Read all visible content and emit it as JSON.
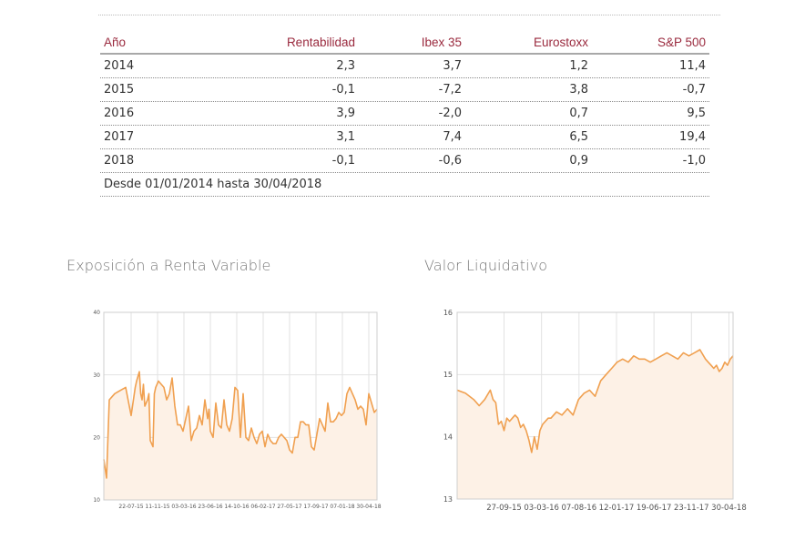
{
  "table": {
    "headers": [
      "Año",
      "Rentabilidad",
      "Ibex 35",
      "Eurostoxx",
      "S&P 500"
    ],
    "rows": [
      [
        "2014",
        "2,3",
        "3,7",
        "1,2",
        "11,4"
      ],
      [
        "2015",
        "-0,1",
        "-7,2",
        "3,8",
        "-0,7"
      ],
      [
        "2016",
        "3,9",
        "-2,0",
        "0,7",
        "9,5"
      ],
      [
        "2017",
        "3,1",
        "7,4",
        "6,5",
        "19,4"
      ],
      [
        "2018",
        "-0,1",
        "-0,6",
        "0,9",
        "-1,0"
      ]
    ],
    "note": "Desde 01/01/2014 hasta 30/04/2018"
  },
  "chart_data": [
    {
      "type": "area",
      "title": "Exposición a Renta Variable",
      "xlabel": "",
      "ylabel": "",
      "ylim": [
        10,
        40
      ],
      "yticks": [
        "40",
        "30",
        "20",
        "10"
      ],
      "xticks": [
        "22-07-15",
        "11-11-15",
        "03-03-16",
        "23-06-16",
        "14-10-16",
        "06-02-17",
        "27-05-17",
        "17-09-17",
        "07-01-18",
        "30-04-18"
      ],
      "grid": true,
      "color": "#f0a050",
      "fill": "#fdf1e6",
      "x": [
        0,
        0.01,
        0.02,
        0.03,
        0.04,
        0.06,
        0.08,
        0.1,
        0.11,
        0.115,
        0.12,
        0.13,
        0.135,
        0.14,
        0.145,
        0.15,
        0.16,
        0.165,
        0.17,
        0.175,
        0.18,
        0.185,
        0.19,
        0.2,
        0.22,
        0.23,
        0.24,
        0.25,
        0.26,
        0.27,
        0.28,
        0.29,
        0.3,
        0.31,
        0.32,
        0.33,
        0.34,
        0.35,
        0.36,
        0.37,
        0.38,
        0.385,
        0.39,
        0.4,
        0.41,
        0.42,
        0.43,
        0.44,
        0.45,
        0.46,
        0.47,
        0.48,
        0.49,
        0.5,
        0.51,
        0.52,
        0.53,
        0.54,
        0.55,
        0.56,
        0.57,
        0.58,
        0.59,
        0.6,
        0.61,
        0.62,
        0.63,
        0.64,
        0.65,
        0.66,
        0.67,
        0.68,
        0.69,
        0.7,
        0.71,
        0.72,
        0.73,
        0.74,
        0.75,
        0.76,
        0.77,
        0.78,
        0.79,
        0.8,
        0.81,
        0.82,
        0.83,
        0.84,
        0.85,
        0.86,
        0.87,
        0.88,
        0.89,
        0.9,
        0.91,
        0.92,
        0.93,
        0.94,
        0.95,
        0.96,
        0.97,
        0.98,
        0.99,
        1.0
      ],
      "values": [
        16.5,
        13.5,
        26,
        26.5,
        27,
        27.5,
        28,
        23.5,
        26.5,
        28,
        29,
        30.5,
        27,
        26,
        28.5,
        25,
        26,
        27,
        19.5,
        19,
        18.5,
        27,
        28,
        29,
        28,
        26,
        27,
        29.5,
        25,
        22,
        22,
        21,
        23,
        25,
        19.5,
        21,
        21.5,
        23.5,
        22,
        26,
        23,
        24.5,
        21,
        20,
        25.5,
        22,
        21.5,
        26,
        22,
        21,
        23,
        28,
        27.5,
        20,
        27,
        20,
        19.5,
        21.5,
        20,
        19,
        20.5,
        21,
        18.5,
        20.5,
        19.5,
        19,
        19,
        20,
        20.5,
        20,
        19.5,
        18,
        17.5,
        20,
        20,
        22.5,
        22.5,
        22,
        22,
        18.5,
        18,
        20.5,
        23,
        22,
        21,
        25.5,
        22.5,
        22.5,
        23,
        24,
        23.5,
        24,
        27,
        28,
        27,
        26,
        24.5,
        25,
        24.5,
        22,
        27,
        25.5,
        24,
        24.5
      ]
    },
    {
      "type": "area",
      "title": "Valor Liquidativo",
      "xlabel": "",
      "ylabel": "",
      "ylim": [
        13,
        16
      ],
      "yticks": [
        "16",
        "15",
        "14",
        "13"
      ],
      "xticks": [
        "27-09-15",
        "03-03-16",
        "07-08-16",
        "12-01-17",
        "19-06-17",
        "23-11-17",
        "30-04-18"
      ],
      "grid": true,
      "color": "#f0a050",
      "fill": "#fdf1e6",
      "x": [
        0,
        0.03,
        0.06,
        0.08,
        0.1,
        0.12,
        0.13,
        0.14,
        0.15,
        0.16,
        0.17,
        0.18,
        0.19,
        0.2,
        0.21,
        0.22,
        0.23,
        0.24,
        0.25,
        0.26,
        0.27,
        0.28,
        0.29,
        0.3,
        0.31,
        0.32,
        0.33,
        0.34,
        0.36,
        0.38,
        0.4,
        0.42,
        0.44,
        0.46,
        0.48,
        0.5,
        0.52,
        0.54,
        0.56,
        0.58,
        0.6,
        0.62,
        0.64,
        0.66,
        0.68,
        0.7,
        0.72,
        0.74,
        0.76,
        0.78,
        0.8,
        0.82,
        0.84,
        0.86,
        0.88,
        0.9,
        0.91,
        0.92,
        0.93,
        0.94,
        0.95,
        0.96,
        0.97,
        0.98,
        0.99,
        1.0
      ],
      "values": [
        14.75,
        14.7,
        14.6,
        14.5,
        14.6,
        14.75,
        14.6,
        14.55,
        14.2,
        14.25,
        14.1,
        14.3,
        14.25,
        14.3,
        14.35,
        14.3,
        14.15,
        14.2,
        14.1,
        13.95,
        13.75,
        14.0,
        13.8,
        14.1,
        14.2,
        14.25,
        14.3,
        14.3,
        14.4,
        14.35,
        14.45,
        14.35,
        14.6,
        14.7,
        14.75,
        14.65,
        14.9,
        15.0,
        15.1,
        15.2,
        15.25,
        15.2,
        15.3,
        15.25,
        15.25,
        15.2,
        15.25,
        15.3,
        15.35,
        15.3,
        15.25,
        15.35,
        15.3,
        15.35,
        15.4,
        15.25,
        15.2,
        15.15,
        15.1,
        15.15,
        15.05,
        15.1,
        15.2,
        15.15,
        15.25,
        15.3
      ]
    }
  ]
}
